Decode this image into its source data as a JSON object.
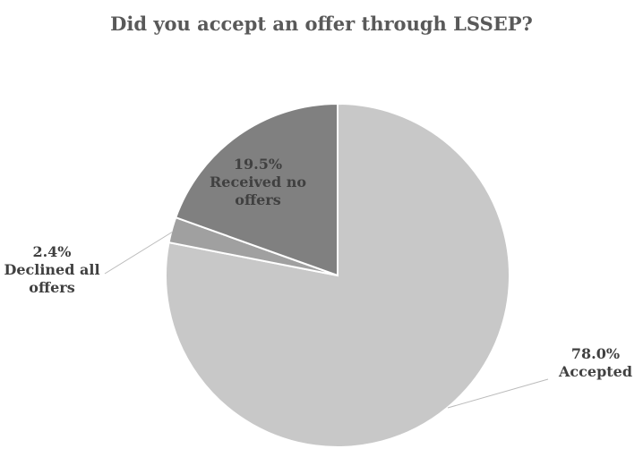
{
  "chart_data": {
    "type": "pie",
    "title": "Did you accept an offer through LSSEP?",
    "categories": [
      "Accepted",
      "Declined all offers",
      "Received no offers"
    ],
    "values": [
      78.0,
      2.4,
      19.5
    ],
    "value_labels": [
      "78.0%",
      "2.4%",
      "19.5%"
    ],
    "colors": [
      "#c8c8c8",
      "#a0a0a0",
      "#808080"
    ]
  }
}
